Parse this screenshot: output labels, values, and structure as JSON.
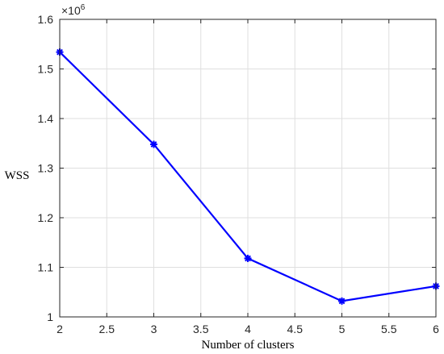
{
  "chart_data": {
    "type": "line",
    "title": "",
    "xlabel": "Number of clusters",
    "ylabel": "WSS",
    "y_multiplier": "×10",
    "y_multiplier_exponent": "6",
    "x": [
      2,
      3,
      4,
      5,
      6
    ],
    "series": [
      {
        "values": [
          1.534,
          1.348,
          1.118,
          1.032,
          1.062
        ],
        "color": "#0000ff",
        "marker": "asterisk"
      }
    ],
    "xlim": [
      2,
      6
    ],
    "ylim": [
      1.0,
      1.6
    ],
    "x_ticks": [
      "2",
      "2.5",
      "3",
      "3.5",
      "4",
      "4.5",
      "5",
      "5.5",
      "6"
    ],
    "y_ticks": [
      "1",
      "1.1",
      "1.2",
      "1.3",
      "1.4",
      "1.5",
      "1.6"
    ],
    "grid": true,
    "colors": {
      "line": "#0000ff",
      "grid": "#dfdfdf",
      "axis": "#262626"
    }
  }
}
